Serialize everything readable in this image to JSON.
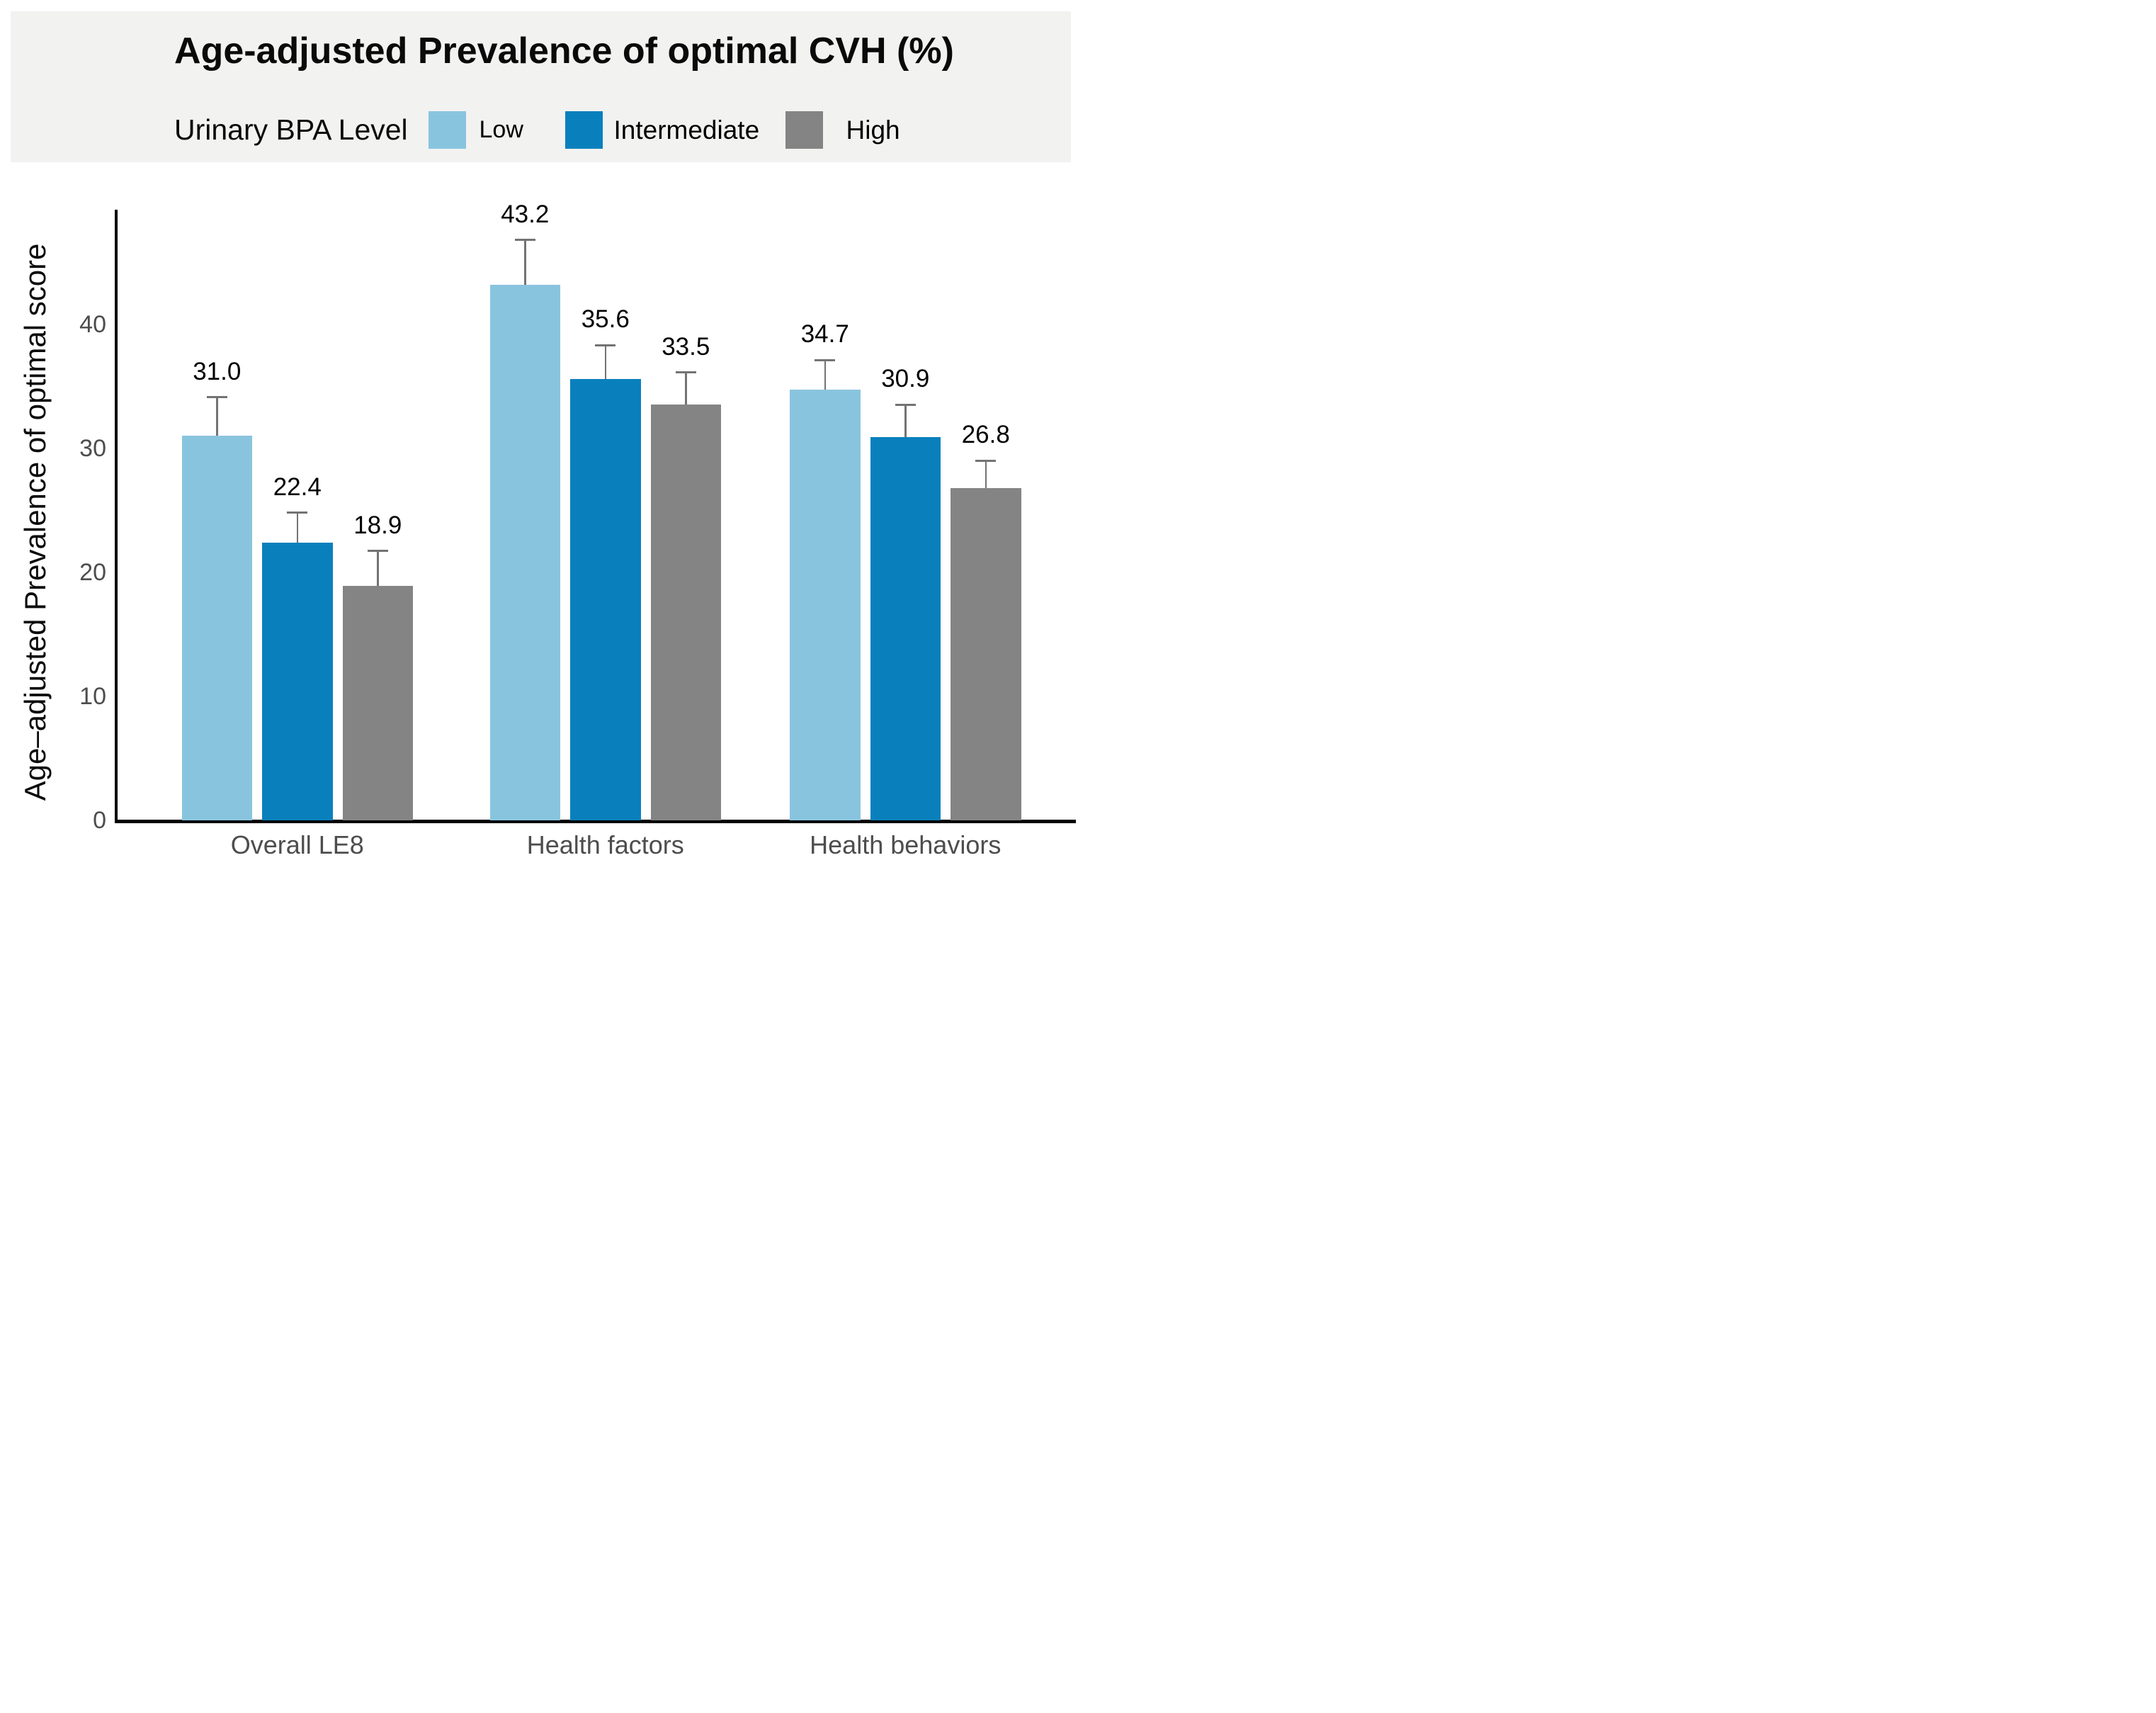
{
  "chart_data": {
    "type": "bar",
    "title": "Age-adjusted Prevalence of optimal CVH (%)",
    "legend_title": "Urinary BPA Level",
    "legend_position": "top",
    "categories": [
      "Overall LE8",
      "Health factors",
      "Health behaviors"
    ],
    "series": [
      {
        "name": "Low",
        "color": "#89C4DF",
        "values": [
          31.0,
          43.2,
          34.7
        ],
        "error_upper": [
          3.1,
          3.6,
          2.4
        ]
      },
      {
        "name": "Intermediate",
        "color": "#0980BC",
        "values": [
          22.4,
          35.6,
          30.9
        ],
        "error_upper": [
          2.4,
          2.7,
          2.6
        ]
      },
      {
        "name": "High",
        "color": "#848484",
        "values": [
          18.9,
          33.5,
          26.8
        ],
        "error_upper": [
          2.8,
          2.6,
          2.2
        ]
      }
    ],
    "xlabel": "",
    "ylabel": "Age–adjusted Prevalence of optimal score",
    "yticks": [
      0,
      10,
      20,
      30,
      40
    ],
    "ylim": [
      0,
      49.2
    ],
    "grid": false,
    "bar_value_labels": true,
    "error_bars": "upper-only",
    "error_bar_color": "#737373",
    "axis_color": "#000000",
    "tick_label_color": "#4d4d4d",
    "header_bg_color": "#F2F2F1"
  }
}
